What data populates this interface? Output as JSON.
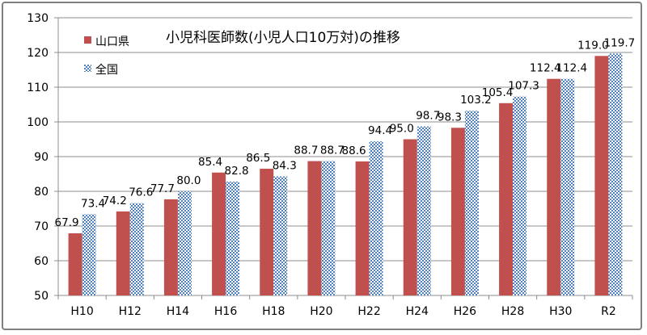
{
  "chart_data": {
    "type": "bar",
    "title": "小児科医師数(小児人口10万対)の推移",
    "xlabel": "",
    "ylabel": "",
    "ylim": [
      50,
      130
    ],
    "y_ticks": [
      50,
      60,
      70,
      80,
      90,
      100,
      110,
      120,
      130
    ],
    "grid": true,
    "legend_position": "top-left",
    "categories": [
      "H10",
      "H12",
      "H14",
      "H16",
      "H18",
      "H20",
      "H22",
      "H24",
      "H26",
      "H28",
      "H30",
      "R2"
    ],
    "series": [
      {
        "name": "山口県",
        "color": "#c0504d",
        "values": [
          67.9,
          74.2,
          77.7,
          85.4,
          86.5,
          88.7,
          88.6,
          95.0,
          98.3,
          105.4,
          112.4,
          119.0
        ]
      },
      {
        "name": "全国",
        "color": "#4f81bd",
        "pattern": "checkered",
        "values": [
          73.4,
          76.6,
          80.0,
          82.8,
          84.3,
          88.7,
          94.4,
          98.7,
          103.2,
          107.3,
          112.4,
          119.7
        ]
      }
    ],
    "data_labels": {
      "山口県": [
        "67.9",
        "74.2",
        "77.7",
        "85.4",
        "86.5",
        "88.7",
        "88.6",
        "95.0",
        "98.3",
        "105.4",
        "112.4",
        "119.0"
      ],
      "全国": [
        "73.4",
        "76.6",
        "80.0",
        "82.8",
        "84.3",
        "88.7",
        "94.4",
        "98.7",
        "103.2",
        "107.3",
        "112.4",
        "119.7"
      ]
    }
  }
}
